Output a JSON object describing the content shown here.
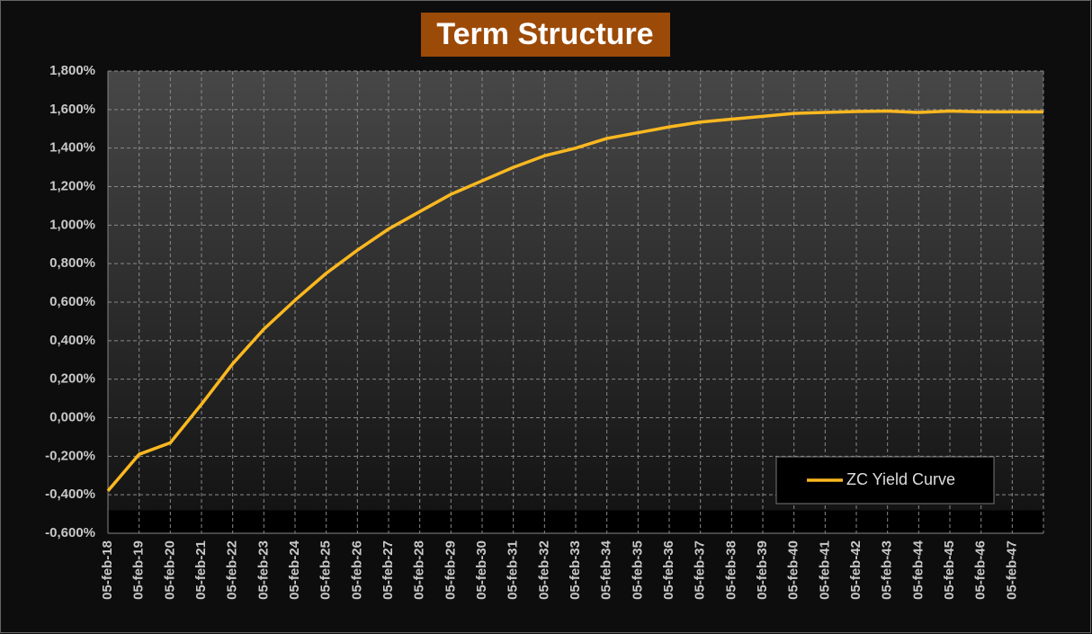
{
  "chart_data": {
    "type": "line",
    "title": "Term Structure",
    "categories": [
      "05-feb-18",
      "05-feb-19",
      "05-feb-20",
      "05-feb-21",
      "05-feb-22",
      "05-feb-23",
      "05-feb-24",
      "05-feb-25",
      "05-feb-26",
      "05-feb-27",
      "05-feb-28",
      "05-feb-29",
      "05-feb-30",
      "05-feb-31",
      "05-feb-32",
      "05-feb-33",
      "05-feb-34",
      "05-feb-35",
      "05-feb-36",
      "05-feb-37",
      "05-feb-38",
      "05-feb-39",
      "05-feb-40",
      "05-feb-41",
      "05-feb-42",
      "05-feb-43",
      "05-feb-44",
      "05-feb-45",
      "05-feb-46",
      "05-feb-47",
      null
    ],
    "series": [
      {
        "name": "ZC Yield Curve",
        "color": "#fbb820",
        "values": [
          -0.38,
          -0.19,
          -0.13,
          0.07,
          0.28,
          0.46,
          0.61,
          0.75,
          0.87,
          0.98,
          1.07,
          1.16,
          1.23,
          1.3,
          1.36,
          1.4,
          1.45,
          1.48,
          1.51,
          1.535,
          1.55,
          1.565,
          1.58,
          1.585,
          1.59,
          1.592,
          1.585,
          1.592,
          1.588,
          1.588,
          1.588
        ]
      }
    ],
    "ylim": [
      -0.6,
      1.8
    ],
    "yticks": [
      {
        "value": -0.6,
        "label": "-0,600%"
      },
      {
        "value": -0.4,
        "label": "-0,400%"
      },
      {
        "value": -0.2,
        "label": "-0,200%"
      },
      {
        "value": 0,
        "label": "0,000%"
      },
      {
        "value": 0.2,
        "label": "0,200%"
      },
      {
        "value": 0.4,
        "label": "0,400%"
      },
      {
        "value": 0.6,
        "label": "0,600%"
      },
      {
        "value": 0.8,
        "label": "0,800%"
      },
      {
        "value": 1.0,
        "label": "1,000%"
      },
      {
        "value": 1.2,
        "label": "1,200%"
      },
      {
        "value": 1.4,
        "label": "1,400%"
      },
      {
        "value": 1.6,
        "label": "1,600%"
      },
      {
        "value": 1.8,
        "label": "1,800%"
      }
    ],
    "grid": true,
    "legend": "lower right"
  }
}
